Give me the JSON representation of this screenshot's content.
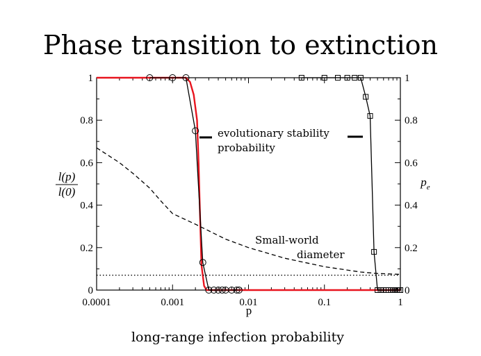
{
  "slide": {
    "title": "Phase transition to extinction",
    "bottom_label": "long-range infection probability"
  },
  "chart_data": {
    "type": "line",
    "x_scale": "log",
    "xlim": [
      0.0001,
      1
    ],
    "ylim": [
      0,
      1
    ],
    "y2lim": [
      0,
      1
    ],
    "xlabel": "p",
    "ylabel_num": "l(p)",
    "ylabel_den": "l(0)",
    "y2label": "p",
    "y2label_sub": "e",
    "grid": false,
    "x_ticks": [
      {
        "v": 0.0001,
        "label": "0.0001"
      },
      {
        "v": 0.001,
        "label": "0.001"
      },
      {
        "v": 0.01,
        "label": "0.01"
      },
      {
        "v": 0.1,
        "label": "0.1"
      },
      {
        "v": 1,
        "label": "1"
      }
    ],
    "y_ticks": [
      {
        "v": 0,
        "label": "0"
      },
      {
        "v": 0.2,
        "label": "0.2"
      },
      {
        "v": 0.4,
        "label": "0.4"
      },
      {
        "v": 0.6,
        "label": "0.6"
      },
      {
        "v": 0.8,
        "label": "0.8"
      },
      {
        "v": 1,
        "label": "1"
      }
    ],
    "y2_ticks": [
      {
        "v": 0,
        "label": "0"
      },
      {
        "v": 0.2,
        "label": "0.2"
      },
      {
        "v": 0.4,
        "label": "0.4"
      },
      {
        "v": 0.6,
        "label": "0.6"
      },
      {
        "v": 0.8,
        "label": "0.8"
      },
      {
        "v": 1,
        "label": "1"
      }
    ],
    "series": [
      {
        "style": "solid-red",
        "color": "#e8141e",
        "x": [
          0.0001,
          0.0012,
          0.0015,
          0.0017,
          0.0019,
          0.0021,
          0.0022,
          0.0023,
          0.0024,
          0.0026,
          0.0028,
          0.01,
          1
        ],
        "y": [
          1,
          1,
          1,
          0.98,
          0.92,
          0.8,
          0.6,
          0.35,
          0.12,
          0.02,
          0,
          0,
          0
        ]
      },
      {
        "style": "solid-black-circles",
        "color": "#000000",
        "x": [
          0.0005,
          0.001,
          0.0015,
          0.002,
          0.0025,
          0.003,
          0.0035,
          0.004,
          0.0045,
          0.005,
          0.006,
          0.007,
          0.0075
        ],
        "y": [
          1,
          1,
          1,
          0.75,
          0.13,
          0,
          0,
          0,
          0,
          0,
          0,
          0,
          0
        ]
      },
      {
        "style": "solid-black-squares",
        "color": "#000000",
        "x": [
          0.05,
          0.1,
          0.15,
          0.2,
          0.25,
          0.3,
          0.35,
          0.4,
          0.45,
          0.5,
          0.55,
          0.6,
          0.65,
          0.7,
          0.75,
          0.8,
          0.85,
          0.9,
          0.95,
          1
        ],
        "y": [
          1,
          1,
          1,
          1,
          1,
          1,
          0.91,
          0.82,
          0.18,
          0,
          0,
          0,
          0,
          0,
          0,
          0,
          0,
          0,
          0,
          0
        ]
      },
      {
        "style": "dashed",
        "color": "#000000",
        "x": [
          0.0001,
          0.0002,
          0.0003,
          0.0005,
          0.0007,
          0.001,
          0.002,
          0.005,
          0.01,
          0.03,
          0.1,
          0.3,
          0.5,
          1
        ],
        "y": [
          0.67,
          0.6,
          0.55,
          0.48,
          0.42,
          0.36,
          0.31,
          0.24,
          0.2,
          0.15,
          0.11,
          0.085,
          0.078,
          0.074
        ]
      },
      {
        "style": "dotted",
        "color": "#000000",
        "x": [
          0.0001,
          1
        ],
        "y": [
          0.07,
          0.07
        ]
      }
    ],
    "annotations": [
      {
        "line1": "evolutionary stability",
        "line2": "probability"
      },
      {
        "line1": "Small-world",
        "line2": "diameter"
      }
    ]
  }
}
